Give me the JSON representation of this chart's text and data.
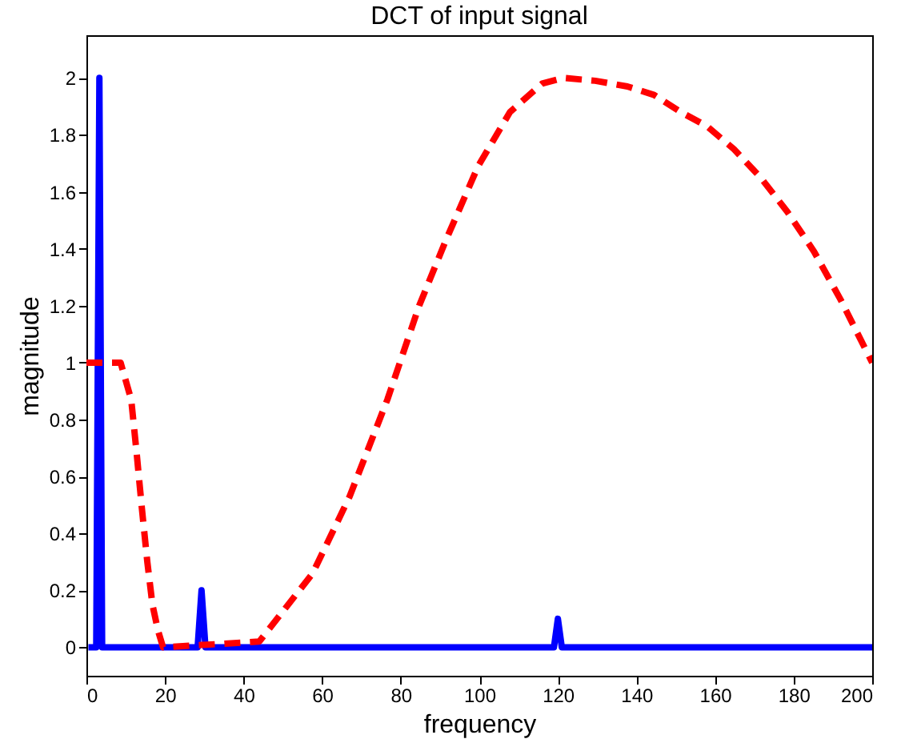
{
  "chart_data": {
    "type": "line",
    "title": "DCT of input signal",
    "xlabel": "frequency",
    "ylabel": "magnitude",
    "xlim": [
      0,
      200
    ],
    "xticks": [
      0,
      20,
      40,
      60,
      80,
      100,
      120,
      140,
      160,
      180,
      200
    ],
    "ylim": [
      -0.1,
      2.15
    ],
    "yticks": [
      0,
      0.2,
      0.4,
      0.6,
      0.8,
      1,
      1.2,
      1.4,
      1.6,
      1.8,
      2
    ],
    "grid": false,
    "legend": false,
    "series": [
      {
        "color": "#0000ff",
        "line_style": "solid",
        "x": [
          0.5,
          2.5,
          3.3,
          4,
          28.3,
          29.3,
          30.3,
          119,
          120,
          121,
          200
        ],
        "values": [
          0,
          0,
          2,
          0,
          0,
          0.2,
          0,
          0,
          0.1,
          0,
          0
        ]
      },
      {
        "color": "#ff0000",
        "line_style": "dashed",
        "x": [
          0,
          8.7,
          11.4,
          12.8,
          14.1,
          15.5,
          16.8,
          18.2,
          19.5,
          44,
          57.6,
          67,
          76.6,
          84.7,
          91.5,
          99.7,
          107.8,
          116,
          121.4,
          129.5,
          137.7,
          144.5,
          151.3,
          158,
          164.8,
          171.6,
          178.4,
          185.2,
          192,
          200
        ],
        "values": [
          1,
          1,
          0.87,
          0.68,
          0.49,
          0.3,
          0.15,
          0.06,
          0,
          0.02,
          0.26,
          0.53,
          0.87,
          1.2,
          1.43,
          1.69,
          1.88,
          1.98,
          2,
          1.99,
          1.97,
          1.94,
          1.88,
          1.83,
          1.75,
          1.65,
          1.53,
          1.39,
          1.22,
          1
        ]
      }
    ]
  }
}
